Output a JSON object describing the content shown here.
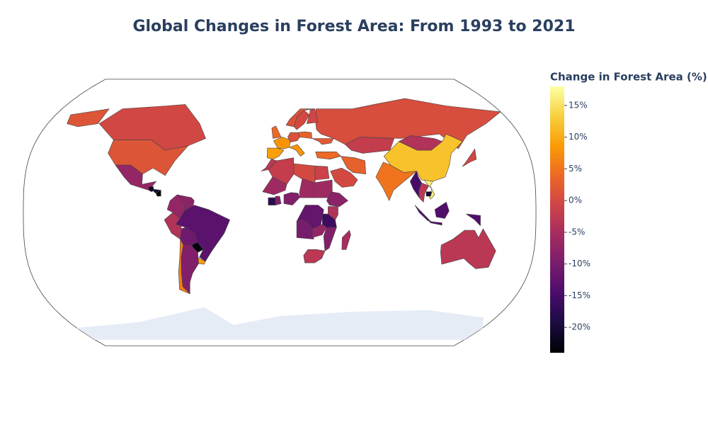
{
  "chart_data": {
    "type": "choropleth",
    "title": "Global Changes in Forest Area: From 1993 to 2021",
    "colorbar_title": "Change in Forest Area (%)",
    "values": [
      0.5,
      -0.3,
      1.5,
      -7,
      -22,
      -20,
      -24,
      -7,
      -8,
      -4,
      -13,
      -11,
      -23,
      9,
      -9,
      6,
      8,
      9,
      1,
      3,
      0,
      -0.5,
      1,
      4,
      8,
      2,
      4,
      -2,
      12,
      -4,
      5,
      -15,
      -3,
      16,
      -21,
      -14,
      -3,
      -0.3,
      -1,
      0,
      -2,
      -3,
      -6,
      -9,
      -12,
      -10,
      -16,
      -4,
      -8,
      -3,
      -5,
      -6,
      -6,
      -18,
      -9,
      -7,
      -9,
      0,
      3
    ],
    "colorscale": [
      "#000004",
      "#1b0c41",
      "#4a0c6b",
      "#781c6d",
      "#a52c60",
      "#cf4446",
      "#ed6925",
      "#fb9b06",
      "#f7d13d",
      "#fcffa4"
    ],
    "zlim": [
      -24,
      18
    ],
    "zticks": [
      {
        "value": 15,
        "label": "15%"
      },
      {
        "value": 10,
        "label": "10%"
      },
      {
        "value": 5,
        "label": "5%"
      },
      {
        "value": 0,
        "label": "0%"
      },
      {
        "value": -5,
        "label": "-5%"
      },
      {
        "value": -10,
        "label": "-10%"
      },
      {
        "value": -15,
        "label": "-15%"
      },
      {
        "value": -20,
        "label": "-20%"
      }
    ]
  }
}
